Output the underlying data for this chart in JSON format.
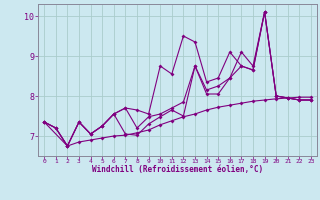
{
  "xlabel": "Windchill (Refroidissement éolien,°C)",
  "xlim": [
    -0.5,
    23.5
  ],
  "ylim": [
    6.5,
    10.3
  ],
  "xticks": [
    0,
    1,
    2,
    3,
    4,
    5,
    6,
    7,
    8,
    9,
    10,
    11,
    12,
    13,
    14,
    15,
    16,
    17,
    18,
    19,
    20,
    21,
    22,
    23
  ],
  "yticks": [
    7,
    8,
    9,
    10
  ],
  "bg_color": "#cce8f0",
  "line_color": "#800080",
  "grid_color": "#aacccc",
  "lines": [
    {
      "x": [
        0,
        1,
        2,
        3,
        4,
        5,
        6,
        7,
        8,
        9,
        10,
        11,
        12,
        13,
        14,
        15,
        16,
        17,
        18,
        19,
        20,
        21,
        22,
        23
      ],
      "y": [
        7.35,
        7.2,
        6.75,
        6.85,
        6.9,
        6.95,
        7.0,
        7.02,
        7.08,
        7.15,
        7.28,
        7.38,
        7.48,
        7.55,
        7.65,
        7.72,
        7.77,
        7.82,
        7.87,
        7.9,
        7.93,
        7.95,
        7.97,
        7.97
      ]
    },
    {
      "x": [
        0,
        1,
        2,
        3,
        4,
        5,
        6,
        7,
        8,
        9,
        10,
        11,
        12,
        13,
        14,
        15,
        16,
        17,
        18,
        19,
        20,
        21,
        22,
        23
      ],
      "y": [
        7.35,
        7.2,
        6.75,
        7.35,
        7.05,
        7.25,
        7.55,
        7.7,
        7.65,
        7.55,
        8.75,
        8.55,
        9.5,
        9.35,
        8.35,
        8.45,
        9.1,
        8.75,
        8.65,
        10.1,
        8.0,
        7.95,
        7.9,
        7.9
      ]
    },
    {
      "x": [
        0,
        1,
        2,
        3,
        4,
        5,
        6,
        7,
        8,
        9,
        10,
        11,
        12,
        13,
        14,
        15,
        16,
        17,
        18,
        19,
        20,
        21,
        22,
        23
      ],
      "y": [
        7.35,
        7.2,
        6.75,
        7.35,
        7.05,
        7.25,
        7.55,
        7.05,
        7.02,
        7.3,
        7.48,
        7.65,
        7.5,
        8.75,
        8.15,
        8.25,
        8.45,
        8.75,
        8.65,
        10.1,
        8.0,
        7.95,
        7.9,
        7.9
      ]
    },
    {
      "x": [
        0,
        2,
        3,
        4,
        5,
        6,
        7,
        8,
        9,
        10,
        11,
        12,
        13,
        14,
        15,
        16,
        17,
        18,
        19,
        20,
        21,
        22,
        23
      ],
      "y": [
        7.35,
        6.75,
        7.35,
        7.05,
        7.25,
        7.55,
        7.7,
        7.2,
        7.48,
        7.55,
        7.7,
        7.85,
        8.75,
        8.05,
        8.05,
        8.45,
        9.1,
        8.75,
        10.1,
        8.0,
        7.95,
        7.9,
        7.9
      ]
    }
  ]
}
